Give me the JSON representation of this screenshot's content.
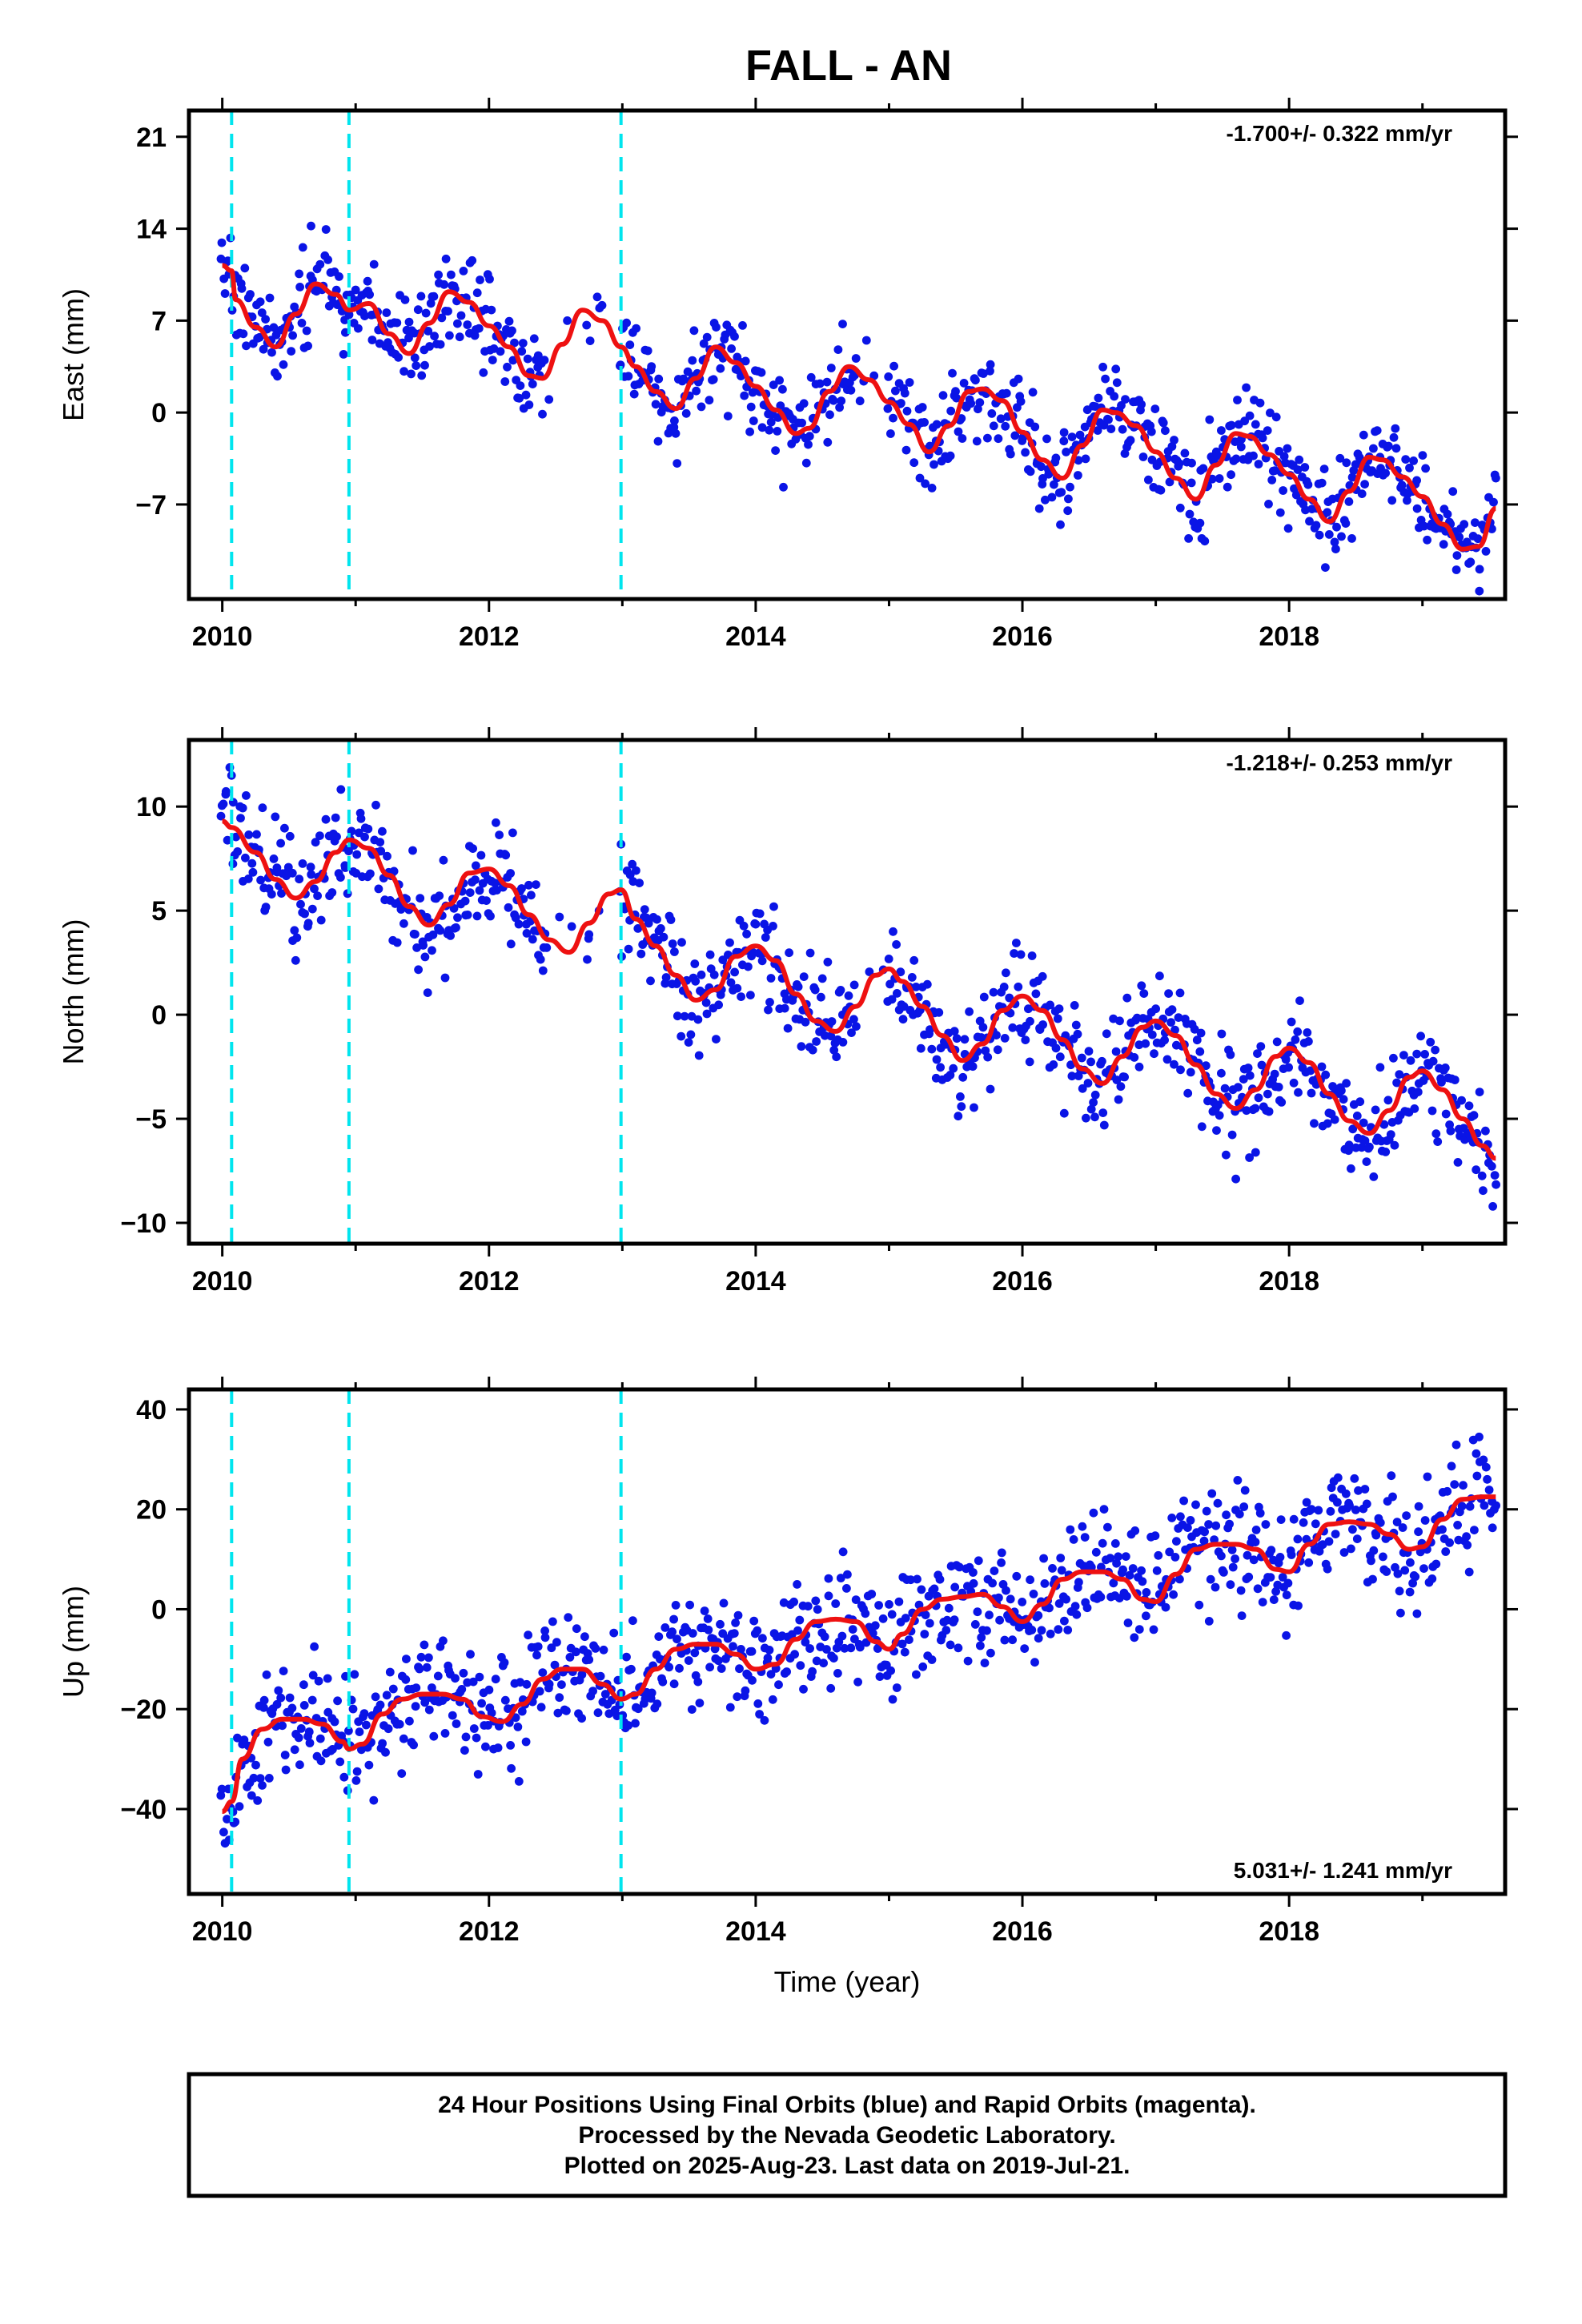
{
  "chart_data": {
    "type": "scatter",
    "title": "FALL - AN",
    "xlabel": "Time (year)",
    "xlim": [
      2009.75,
      2019.62
    ],
    "x_ticks": [
      2010,
      2012,
      2014,
      2016,
      2018
    ],
    "x_minor_ticks": [
      2011,
      2013,
      2015,
      2017,
      2019
    ],
    "equipment_changes": [
      2010.07,
      2010.95,
      2012.99
    ],
    "colors": {
      "points": "#0a14e6",
      "fit": "#ee1111",
      "event_lines": "#00e5ee",
      "rapid": "#ff00ff"
    },
    "panels": [
      {
        "ylabel": "East (mm)",
        "ylim": [
          -14.2,
          23
        ],
        "y_ticks": [
          21,
          14,
          7,
          0,
          -7
        ],
        "rate": "-1.700+/- 0.322 mm/yr",
        "rate_position": "top-right",
        "fit": {
          "x": [
            2010.0,
            2010.07,
            2010.1,
            2010.25,
            2010.4,
            2010.55,
            2010.7,
            2010.85,
            2010.95,
            2011.1,
            2011.25,
            2011.4,
            2011.55,
            2011.7,
            2011.85,
            2012.0,
            2012.15,
            2012.3,
            2012.4,
            2012.55,
            2012.7,
            2012.85,
            2012.99,
            2013.1,
            2013.25,
            2013.4,
            2013.55,
            2013.7,
            2013.85,
            2014.0,
            2014.15,
            2014.3,
            2014.4,
            2014.55,
            2014.7,
            2014.85,
            2015.0,
            2015.15,
            2015.3,
            2015.45,
            2015.6,
            2015.7,
            2015.85,
            2016.0,
            2016.15,
            2016.3,
            2016.45,
            2016.6,
            2016.7,
            2016.85,
            2017.0,
            2017.15,
            2017.3,
            2017.45,
            2017.6,
            2017.7,
            2017.85,
            2018.0,
            2018.15,
            2018.3,
            2018.45,
            2018.6,
            2018.7,
            2018.85,
            2019.0,
            2019.15,
            2019.3,
            2019.42,
            2019.55
          ],
          "y": [
            11.2,
            10.8,
            8.6,
            6.5,
            5.0,
            7.5,
            9.8,
            9.0,
            7.8,
            8.3,
            6.0,
            4.5,
            6.8,
            9.2,
            8.4,
            6.6,
            5.0,
            2.8,
            2.6,
            5.2,
            7.8,
            7.0,
            5.0,
            3.5,
            1.6,
            0.3,
            2.6,
            5.0,
            3.8,
            2.0,
            0.2,
            -1.6,
            -1.2,
            1.6,
            3.5,
            2.5,
            0.8,
            -0.9,
            -3.0,
            -1.0,
            1.6,
            1.8,
            0.9,
            -1.5,
            -3.6,
            -5.0,
            -2.5,
            0.2,
            0.0,
            -1.0,
            -3.0,
            -5.0,
            -6.6,
            -4.0,
            -1.6,
            -1.8,
            -3.2,
            -4.7,
            -6.6,
            -8.3,
            -6.0,
            -3.4,
            -3.6,
            -4.9,
            -6.4,
            -8.5,
            -10.4,
            -10.2,
            -7.3
          ]
        }
      },
      {
        "ylabel": "North (mm)",
        "ylim": [
          -11,
          13.2
        ],
        "y_ticks": [
          10,
          5,
          0,
          -5,
          -10
        ],
        "rate": "-1.218+/- 0.253 mm/yr",
        "rate_position": "top-right",
        "fit": {
          "x": [
            2010.0,
            2010.07,
            2010.25,
            2010.4,
            2010.55,
            2010.7,
            2010.85,
            2010.95,
            2011.1,
            2011.25,
            2011.4,
            2011.55,
            2011.7,
            2011.85,
            2012.0,
            2012.15,
            2012.3,
            2012.45,
            2012.6,
            2012.75,
            2012.9,
            2012.99,
            2013.1,
            2013.25,
            2013.4,
            2013.55,
            2013.7,
            2013.85,
            2014.0,
            2014.15,
            2014.3,
            2014.45,
            2014.6,
            2014.75,
            2014.9,
            2015.0,
            2015.1,
            2015.25,
            2015.4,
            2015.55,
            2015.7,
            2015.85,
            2016.0,
            2016.15,
            2016.3,
            2016.45,
            2016.6,
            2016.75,
            2016.9,
            2017.0,
            2017.15,
            2017.3,
            2017.45,
            2017.6,
            2017.75,
            2017.9,
            2018.0,
            2018.15,
            2018.3,
            2018.45,
            2018.6,
            2018.75,
            2018.9,
            2019.0,
            2019.15,
            2019.3,
            2019.45,
            2019.55
          ],
          "y": [
            9.3,
            9.0,
            7.8,
            6.5,
            5.6,
            6.4,
            7.8,
            8.4,
            8.0,
            6.7,
            5.2,
            4.3,
            5.3,
            6.8,
            7.0,
            6.2,
            4.8,
            3.6,
            3.0,
            4.4,
            5.8,
            6.0,
            4.6,
            3.3,
            1.9,
            0.7,
            1.2,
            2.8,
            3.3,
            2.6,
            1.0,
            -0.3,
            -0.8,
            0.4,
            1.9,
            2.2,
            1.6,
            0.4,
            -1.0,
            -2.2,
            -1.4,
            0.2,
            0.9,
            0.2,
            -1.2,
            -2.6,
            -3.3,
            -2.0,
            -0.6,
            -0.3,
            -1.0,
            -2.4,
            -3.8,
            -4.5,
            -3.6,
            -2.0,
            -1.6,
            -2.3,
            -3.8,
            -5.1,
            -5.7,
            -4.6,
            -3.0,
            -2.7,
            -3.6,
            -5.0,
            -6.3,
            -6.9
          ]
        }
      },
      {
        "ylabel": "Up (mm)",
        "ylim": [
          -57,
          44
        ],
        "y_ticks": [
          40,
          20,
          0,
          -20,
          -40
        ],
        "rate": "5.031+/- 1.241 mm/yr",
        "rate_position": "bottom-right",
        "fit": {
          "x": [
            2010.0,
            2010.07,
            2010.15,
            2010.3,
            2010.45,
            2010.6,
            2010.75,
            2010.9,
            2010.95,
            2011.05,
            2011.2,
            2011.35,
            2011.5,
            2011.65,
            2011.8,
            2011.95,
            2012.1,
            2012.25,
            2012.4,
            2012.55,
            2012.7,
            2012.85,
            2012.99,
            2013.1,
            2013.25,
            2013.4,
            2013.55,
            2013.7,
            2013.85,
            2014.0,
            2014.15,
            2014.3,
            2014.45,
            2014.6,
            2014.75,
            2014.9,
            2015.0,
            2015.1,
            2015.25,
            2015.4,
            2015.55,
            2015.7,
            2015.85,
            2016.0,
            2016.15,
            2016.3,
            2016.45,
            2016.6,
            2016.75,
            2016.9,
            2017.0,
            2017.15,
            2017.3,
            2017.45,
            2017.6,
            2017.75,
            2017.9,
            2018.0,
            2018.15,
            2018.3,
            2018.45,
            2018.6,
            2018.75,
            2018.9,
            2019.0,
            2019.15,
            2019.3,
            2019.45,
            2019.55
          ],
          "y": [
            -40.5,
            -38.5,
            -30,
            -24,
            -22,
            -22,
            -23,
            -26.5,
            -28,
            -27,
            -21,
            -18,
            -17,
            -17,
            -18,
            -21.5,
            -22.5,
            -19,
            -14,
            -12,
            -12,
            -15,
            -18,
            -17,
            -12,
            -8,
            -7,
            -7,
            -9,
            -12,
            -11,
            -6,
            -2.5,
            -2,
            -2.5,
            -6.5,
            -8,
            -5,
            0,
            2,
            2.5,
            3,
            0.5,
            -2.5,
            1,
            6,
            7.5,
            7.5,
            6,
            2,
            1.5,
            7,
            12,
            13,
            13,
            12,
            8,
            7.5,
            13,
            17,
            17.5,
            17,
            15,
            12,
            12.5,
            18,
            22,
            22.5,
            22.5
          ]
        }
      }
    ]
  },
  "footer": {
    "line1": "24 Hour Positions Using Final Orbits (blue) and Rapid Orbits (magenta).",
    "line2": "Processed by the Nevada Geodetic Laboratory.",
    "line3": "Plotted on 2025-Aug-23. Last data on 2019-Jul-21."
  }
}
